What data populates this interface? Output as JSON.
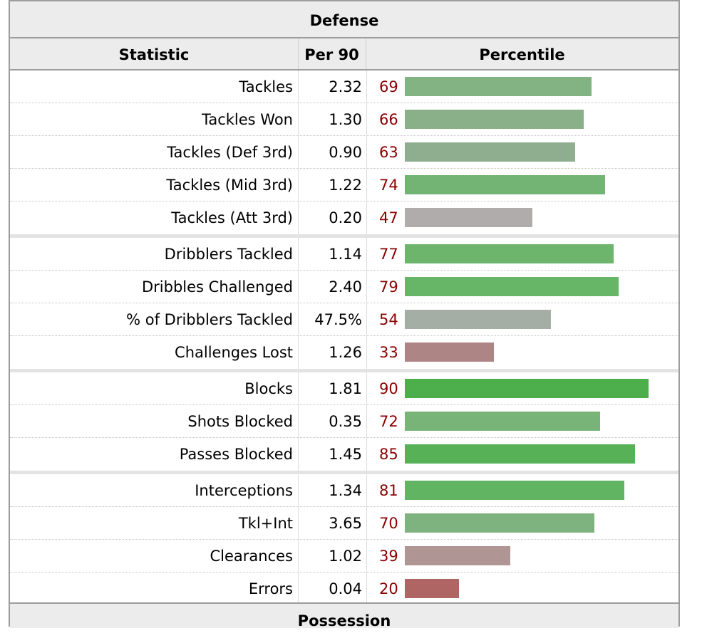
{
  "sections": {
    "top": "Defense",
    "bottom": "Possession"
  },
  "columns": {
    "statistic": "Statistic",
    "per90": "Per 90",
    "percentile": "Percentile"
  },
  "rows": [
    {
      "stat": "Tackles",
      "per90": "2.32",
      "pct": "69",
      "pct_value": 69,
      "bar_color": "#83b283"
    },
    {
      "stat": "Tackles Won",
      "per90": "1.30",
      "pct": "66",
      "pct_value": 66,
      "bar_color": "#89b089"
    },
    {
      "stat": "Tackles (Def 3rd)",
      "per90": "0.90",
      "pct": "63",
      "pct_value": 63,
      "bar_color": "#8fae8f"
    },
    {
      "stat": "Tackles (Mid 3rd)",
      "per90": "1.22",
      "pct": "74",
      "pct_value": 74,
      "bar_color": "#73b373"
    },
    {
      "stat": "Tackles (Att 3rd)",
      "per90": "0.20",
      "pct": "47",
      "pct_value": 47,
      "bar_color": "#b1acac"
    },
    {
      "stat": "Dribblers Tackled",
      "per90": "1.14",
      "pct": "77",
      "pct_value": 77,
      "bar_color": "#6db46d"
    },
    {
      "stat": "Dribbles Challenged",
      "per90": "2.40",
      "pct": "79",
      "pct_value": 79,
      "bar_color": "#67b567"
    },
    {
      "stat": "% of Dribblers Tackled",
      "per90": "47.5%",
      "pct": "54",
      "pct_value": 54,
      "bar_color": "#a5aea5"
    },
    {
      "stat": "Challenges Lost",
      "per90": "1.26",
      "pct": "33",
      "pct_value": 33,
      "bar_color": "#ae8585"
    },
    {
      "stat": "Blocks",
      "per90": "1.81",
      "pct": "90",
      "pct_value": 90,
      "bar_color": "#4caf4c"
    },
    {
      "stat": "Shots Blocked",
      "per90": "0.35",
      "pct": "72",
      "pct_value": 72,
      "bar_color": "#78b378"
    },
    {
      "stat": "Passes Blocked",
      "per90": "1.45",
      "pct": "85",
      "pct_value": 85,
      "bar_color": "#57b257"
    },
    {
      "stat": "Interceptions",
      "per90": "1.34",
      "pct": "81",
      "pct_value": 81,
      "bar_color": "#61b461"
    },
    {
      "stat": "Tkl+Int",
      "per90": "3.65",
      "pct": "70",
      "pct_value": 70,
      "bar_color": "#7eb27e"
    },
    {
      "stat": "Clearances",
      "per90": "1.02",
      "pct": "39",
      "pct_value": 39,
      "bar_color": "#b09595"
    },
    {
      "stat": "Errors",
      "per90": "0.04",
      "pct": "20",
      "pct_value": 20,
      "bar_color": "#b06565"
    }
  ],
  "groups": [
    5,
    4,
    3,
    4
  ]
}
